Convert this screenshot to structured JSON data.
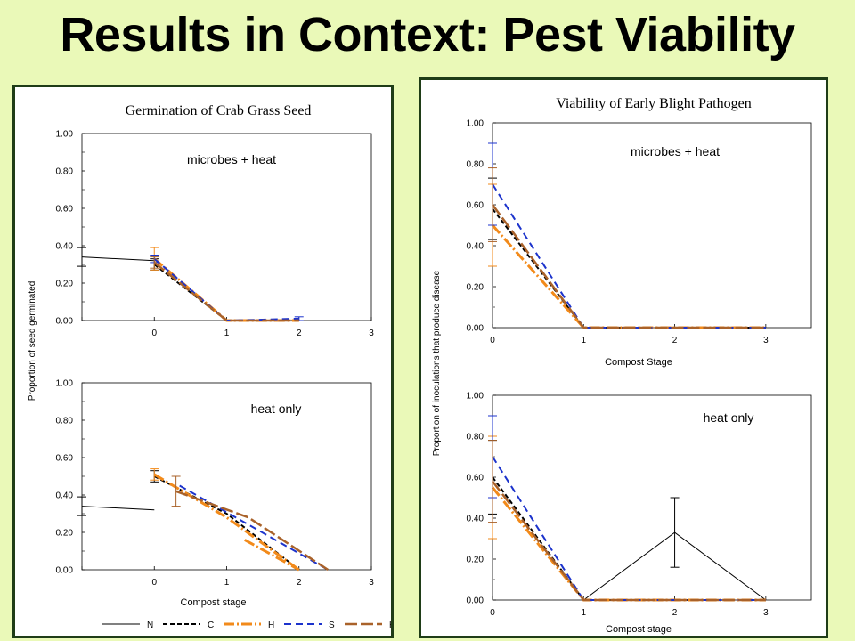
{
  "page": {
    "title": "Results in Context: Pest Viability"
  },
  "colors": {
    "N": "#000000",
    "C": "#000000",
    "H1": "#f28a1a",
    "S": "#1c33cc",
    "H2": "#a9622a",
    "panel_border": "#1f3d17",
    "background": "#eaf9b8"
  },
  "left_panel": {
    "title": "Germination of Crab Grass Seed",
    "ylabel": "Proportion  of seed germinated"
  },
  "right_panel": {
    "title": "Viability of Early Blight Pathogen",
    "ylabel": "Proportion of inoculations that produce disease"
  },
  "chart_data": [
    {
      "type": "line",
      "panel": "left",
      "title": "Germination of Crab Grass Seed",
      "annotation": "microbes + heat",
      "xlabel": "",
      "ylabel": "Proportion  of seed germinated",
      "xlim": [
        -1,
        3
      ],
      "ylim": [
        0,
        1
      ],
      "x_ticks": [
        "0",
        "1",
        "2",
        "3"
      ],
      "y_ticks": [
        "0.00",
        "0.20",
        "0.40",
        "0.60",
        "0.80",
        "1.00"
      ],
      "series": [
        {
          "key": "N",
          "points": [
            [
              -1,
              0.34
            ],
            [
              0,
              0.32
            ]
          ],
          "err": [
            0.05,
            0.0
          ]
        },
        {
          "key": "C",
          "points": [
            [
              0,
              0.3
            ],
            [
              1,
              0.0
            ],
            [
              2,
              0.0
            ]
          ],
          "err": [
            0.03,
            0,
            0
          ]
        },
        {
          "key": "H1",
          "points": [
            [
              0,
              0.33
            ],
            [
              1,
              0.0
            ],
            [
              2,
              0.0
            ]
          ],
          "err": [
            0.06,
            0,
            0
          ]
        },
        {
          "key": "S",
          "points": [
            [
              0,
              0.33
            ],
            [
              1,
              0.0
            ],
            [
              2,
              0.01
            ]
          ],
          "err": [
            0.02,
            0,
            0.01
          ]
        },
        {
          "key": "H2",
          "points": [
            [
              0,
              0.31
            ],
            [
              1,
              0.0
            ],
            [
              2,
              0.0
            ]
          ],
          "err": [
            0.03,
            0,
            0
          ]
        }
      ]
    },
    {
      "type": "line",
      "panel": "left",
      "title": "",
      "annotation": "heat only",
      "xlabel": "Compost stage",
      "ylabel": "",
      "xlim": [
        -1,
        3
      ],
      "ylim": [
        0,
        1
      ],
      "x_ticks": [
        "0",
        "1",
        "2",
        "3"
      ],
      "y_ticks": [
        "0.00",
        "0.20",
        "0.40",
        "0.60",
        "0.80",
        "1.00"
      ],
      "legend": {
        "placement": "bottom",
        "labels": [
          "N",
          "C",
          "H",
          "S",
          "H"
        ]
      },
      "series": [
        {
          "key": "N",
          "points": [
            [
              -1,
              0.34
            ],
            [
              0,
              0.32
            ]
          ],
          "err": [
            0.05,
            0
          ]
        },
        {
          "key": "C",
          "points": [
            [
              0,
              0.5
            ],
            [
              1,
              0.3
            ],
            [
              2,
              0.0
            ]
          ],
          "err": [
            0.03,
            0,
            0
          ]
        },
        {
          "key": "H1",
          "points": [
            [
              0,
              0.51
            ],
            [
              1,
              0.28
            ],
            [
              2,
              0.0
            ]
          ],
          "err": [
            0.03,
            0,
            0
          ]
        },
        {
          "key": "H1",
          "points": [
            [
              1.25,
              0.16
            ],
            [
              2,
              0.0
            ]
          ],
          "err": [
            0,
            0
          ]
        },
        {
          "key": "S",
          "points": [
            [
              0.35,
              0.45
            ],
            [
              2.4,
              0.0
            ]
          ],
          "err": [
            0.0,
            0
          ]
        },
        {
          "key": "H2",
          "points": [
            [
              0.3,
              0.42
            ],
            [
              1.3,
              0.28
            ],
            [
              2.4,
              0.0
            ]
          ],
          "err": [
            0.08,
            0,
            0
          ]
        }
      ]
    },
    {
      "type": "line",
      "panel": "right",
      "title": "Viability of Early Blight Pathogen",
      "annotation": "microbes  + heat",
      "xlabel": "Compost  Stage",
      "ylabel": "Proportion of inoculations that produce disease",
      "xlim": [
        0,
        3.5
      ],
      "ylim": [
        0,
        1
      ],
      "x_ticks": [
        "0",
        "1",
        "2",
        "3"
      ],
      "y_ticks": [
        "0.00",
        "0.20",
        "0.40",
        "0.60",
        "0.80",
        "1.00"
      ],
      "series": [
        {
          "key": "C",
          "points": [
            [
              0,
              0.58
            ],
            [
              1,
              0.0
            ],
            [
              2,
              0.0
            ],
            [
              3,
              0.0
            ]
          ],
          "err": [
            0.15,
            0,
            0,
            0
          ]
        },
        {
          "key": "H1",
          "points": [
            [
              0,
              0.5
            ],
            [
              1,
              0.0
            ],
            [
              2,
              0.0
            ],
            [
              3,
              0.0
            ]
          ],
          "err": [
            0.2,
            0,
            0,
            0
          ]
        },
        {
          "key": "S",
          "points": [
            [
              0,
              0.7
            ],
            [
              1,
              0.0
            ],
            [
              2,
              0.0
            ],
            [
              3,
              0.0
            ]
          ],
          "err": [
            0.2,
            0,
            0,
            0
          ]
        },
        {
          "key": "H2",
          "points": [
            [
              0,
              0.6
            ],
            [
              1,
              0.0
            ],
            [
              2,
              0.0
            ],
            [
              3,
              0.0
            ]
          ],
          "err": [
            0.18,
            0,
            0,
            0
          ]
        }
      ]
    },
    {
      "type": "line",
      "panel": "right",
      "title": "",
      "annotation": "heat  only",
      "xlabel": "Compost  stage",
      "ylabel": "",
      "xlim": [
        0,
        3.5
      ],
      "ylim": [
        0,
        1
      ],
      "x_ticks": [
        "0",
        "1",
        "2",
        "3"
      ],
      "y_ticks": [
        "0.00",
        "0.20",
        "0.40",
        "0.60",
        "0.80",
        "1.00"
      ],
      "series": [
        {
          "key": "N",
          "points": [
            [
              1,
              0.0
            ],
            [
              2,
              0.33
            ],
            [
              3,
              0.0
            ]
          ],
          "err": [
            0,
            0.17,
            0
          ]
        },
        {
          "key": "C",
          "points": [
            [
              0,
              0.6
            ],
            [
              1,
              0.0
            ],
            [
              2,
              0.0
            ],
            [
              3,
              0.0
            ]
          ],
          "err": [
            0.18,
            0,
            0,
            0
          ]
        },
        {
          "key": "H1",
          "points": [
            [
              0,
              0.55
            ],
            [
              1,
              0.0
            ],
            [
              2,
              0.0
            ],
            [
              3,
              0.0
            ]
          ],
          "err": [
            0.25,
            0,
            0,
            0
          ]
        },
        {
          "key": "S",
          "points": [
            [
              0,
              0.7
            ],
            [
              1,
              0.0
            ],
            [
              2,
              0.0
            ],
            [
              3,
              0.0
            ]
          ],
          "err": [
            0.2,
            0,
            0,
            0
          ]
        },
        {
          "key": "H2",
          "points": [
            [
              0,
              0.58
            ],
            [
              1,
              0.0
            ],
            [
              2,
              0.0
            ],
            [
              3,
              0.0
            ]
          ],
          "err": [
            0.2,
            0,
            0,
            0
          ]
        }
      ]
    }
  ]
}
